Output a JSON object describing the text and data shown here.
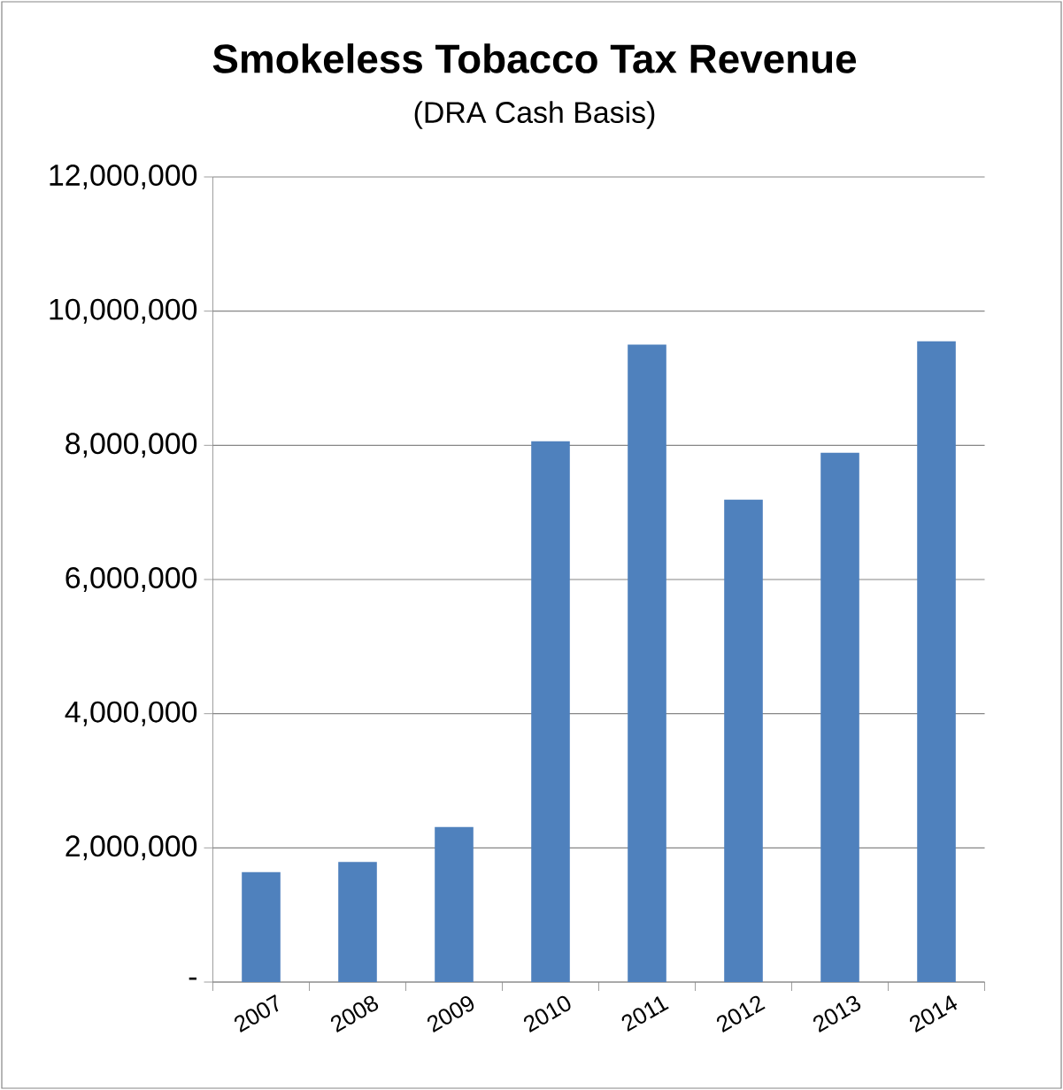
{
  "chart_data": {
    "type": "bar",
    "title": "Smokeless Tobacco Tax Revenue",
    "subtitle": "(DRA Cash Basis)",
    "categories": [
      "2007",
      "2008",
      "2009",
      "2010",
      "2011",
      "2012",
      "2013",
      "2014"
    ],
    "values": [
      1640000,
      1790000,
      2310000,
      8060000,
      9500000,
      7190000,
      7890000,
      9550000
    ],
    "color": "#4f81bd",
    "ylim": [
      0,
      12000000
    ],
    "yticks": [
      {
        "value": 0,
        "label": "-"
      },
      {
        "value": 2000000,
        "label": "2,000,000"
      },
      {
        "value": 4000000,
        "label": "4,000,000"
      },
      {
        "value": 6000000,
        "label": "6,000,000"
      },
      {
        "value": 8000000,
        "label": "8,000,000"
      },
      {
        "value": 10000000,
        "label": "10,000,000"
      },
      {
        "value": 12000000,
        "label": "12,000,000"
      }
    ],
    "grid": "y"
  }
}
